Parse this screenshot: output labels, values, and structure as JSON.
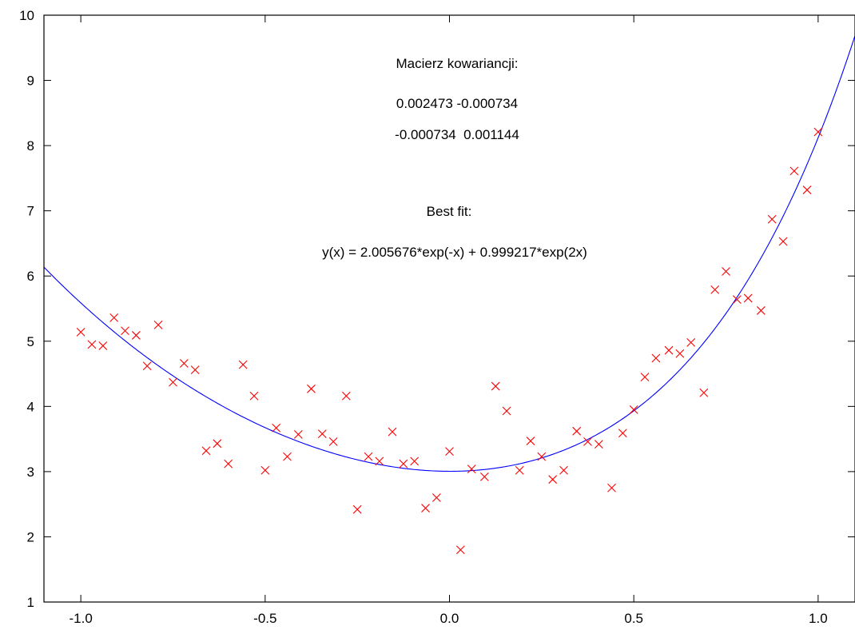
{
  "chart_data": {
    "type": "scatter",
    "title": "",
    "xlabel": "",
    "ylabel": "",
    "xlim": [
      -1.1,
      1.1
    ],
    "ylim": [
      1,
      10
    ],
    "x_ticks": [
      -1.0,
      -0.5,
      0.0,
      0.5,
      1.0
    ],
    "x_tick_labels": [
      "-1.0",
      "-0.5",
      "0.0",
      "0.5",
      "1.0"
    ],
    "y_ticks": [
      1,
      2,
      3,
      4,
      5,
      6,
      7,
      8,
      9,
      10
    ],
    "y_tick_labels": [
      "1",
      "2",
      "3",
      "4",
      "5",
      "6",
      "7",
      "8",
      "9",
      "10"
    ],
    "grid": false,
    "annotations": [
      "Macierz kowariancji:",
      "0.002473 -0.000734",
      "-0.000734  0.001144",
      "Best fit:",
      "y(x) = 2.005676*exp(-x) + 0.999217*exp(2x)"
    ],
    "series": [
      {
        "kind": "scatter",
        "marker": "x",
        "color": "#ff0000",
        "points": [
          [
            -1.0,
            5.14
          ],
          [
            -0.97,
            4.95
          ],
          [
            -0.94,
            4.93
          ],
          [
            -0.91,
            5.36
          ],
          [
            -0.88,
            5.16
          ],
          [
            -0.85,
            5.09
          ],
          [
            -0.82,
            4.62
          ],
          [
            -0.79,
            5.25
          ],
          [
            -0.75,
            4.37
          ],
          [
            -0.72,
            4.66
          ],
          [
            -0.69,
            4.56
          ],
          [
            -0.66,
            3.32
          ],
          [
            -0.63,
            3.43
          ],
          [
            -0.6,
            3.12
          ],
          [
            -0.56,
            4.64
          ],
          [
            -0.53,
            4.16
          ],
          [
            -0.5,
            3.02
          ],
          [
            -0.47,
            3.67
          ],
          [
            -0.44,
            3.23
          ],
          [
            -0.41,
            3.57
          ],
          [
            -0.375,
            4.27
          ],
          [
            -0.345,
            3.58
          ],
          [
            -0.315,
            3.46
          ],
          [
            -0.28,
            4.16
          ],
          [
            -0.25,
            2.42
          ],
          [
            -0.22,
            3.23
          ],
          [
            -0.19,
            3.16
          ],
          [
            -0.155,
            3.61
          ],
          [
            -0.125,
            3.12
          ],
          [
            -0.095,
            3.16
          ],
          [
            -0.065,
            2.44
          ],
          [
            -0.035,
            2.6
          ],
          [
            0.0,
            3.31
          ],
          [
            0.03,
            1.8
          ],
          [
            0.06,
            3.04
          ],
          [
            0.095,
            2.92
          ],
          [
            0.125,
            4.31
          ],
          [
            0.155,
            3.93
          ],
          [
            0.19,
            3.02
          ],
          [
            0.22,
            3.47
          ],
          [
            0.25,
            3.23
          ],
          [
            0.28,
            2.88
          ],
          [
            0.31,
            3.02
          ],
          [
            0.345,
            3.62
          ],
          [
            0.375,
            3.46
          ],
          [
            0.405,
            3.42
          ],
          [
            0.44,
            2.75
          ],
          [
            0.47,
            3.59
          ],
          [
            0.5,
            3.95
          ],
          [
            0.53,
            4.45
          ],
          [
            0.56,
            4.74
          ],
          [
            0.595,
            4.86
          ],
          [
            0.625,
            4.81
          ],
          [
            0.655,
            4.98
          ],
          [
            0.69,
            4.21
          ],
          [
            0.72,
            5.79
          ],
          [
            0.75,
            6.07
          ],
          [
            0.78,
            5.64
          ],
          [
            0.81,
            5.66
          ],
          [
            0.845,
            5.47
          ],
          [
            0.875,
            6.87
          ],
          [
            0.905,
            6.53
          ],
          [
            0.935,
            7.61
          ],
          [
            0.97,
            7.32
          ],
          [
            1.0,
            8.21
          ]
        ]
      },
      {
        "kind": "line",
        "color": "#0000ff",
        "function": "2.005676*exp(-x) + 0.999217*exp(2x)",
        "a": 2.005676,
        "b": 0.999217
      }
    ]
  }
}
